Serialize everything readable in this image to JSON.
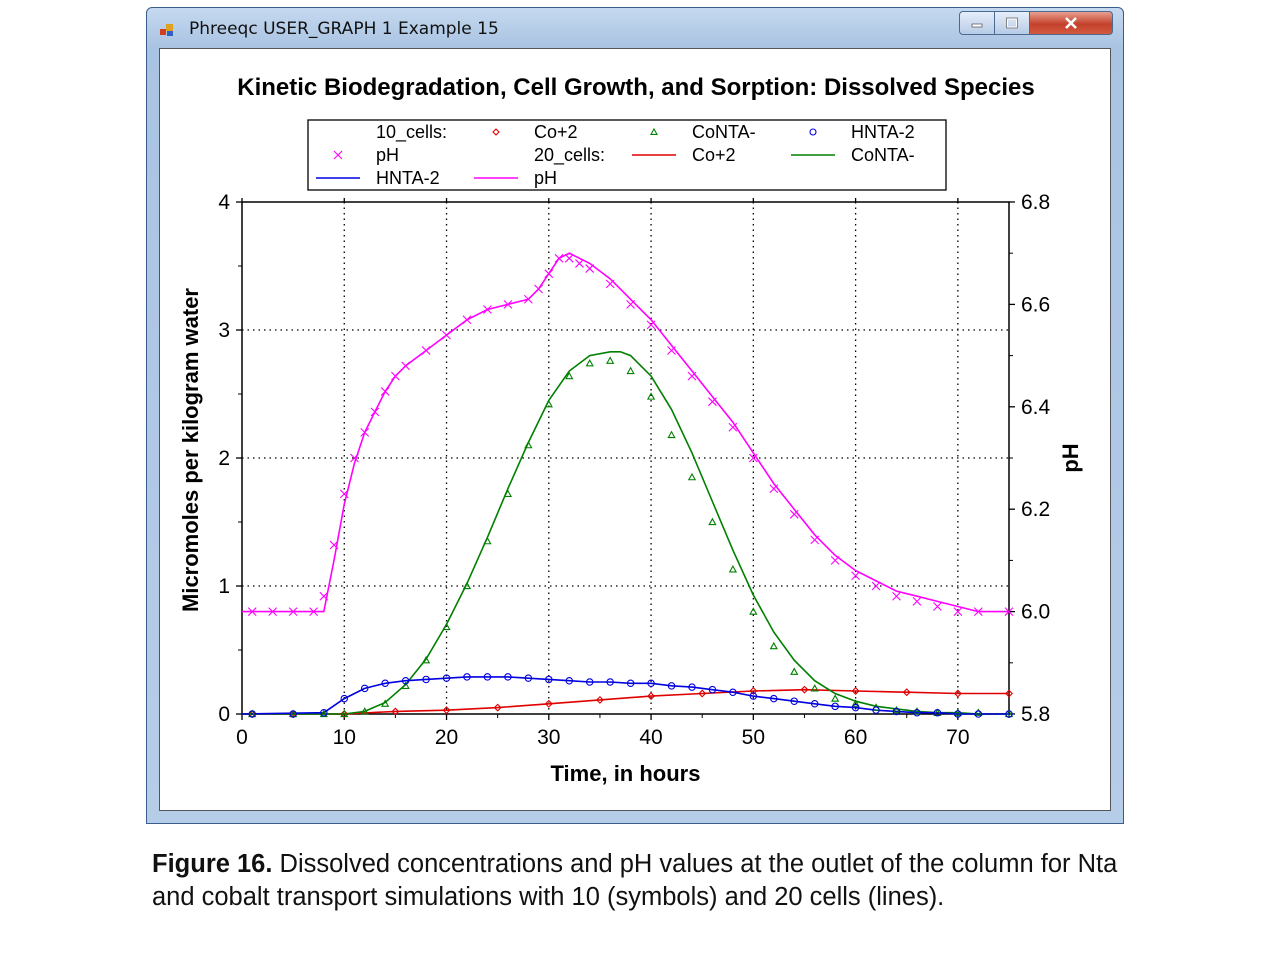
{
  "window": {
    "title": "Phreeqc USER_GRAPH 1 Example 15",
    "icon": "phreeqc-app-icon",
    "buttons": [
      "minimize-icon",
      "maximize-icon",
      "close-icon"
    ]
  },
  "caption": {
    "label": "Figure 16.",
    "text": " Dissolved concentrations and pH values at the outlet of the column for Nta and cobalt transport simulations with 10 (symbols) and 20 cells (lines)."
  },
  "colors": {
    "co2": "#e00000",
    "conta": "#008000",
    "hnta": "#0000e0",
    "ph": "#ff00ff"
  },
  "chart_data": {
    "type": "line",
    "title": "Kinetic Biodegradation, Cell Growth, and Sorption: Dissolved Species",
    "xlabel": "Time, in hours",
    "ylabel": "Micromoles per kilogram water",
    "y2label": "pH",
    "xlim": [
      0,
      75
    ],
    "ylim": [
      0,
      4
    ],
    "y2lim": [
      5.8,
      6.8
    ],
    "xticks": [
      0,
      10,
      20,
      30,
      40,
      50,
      60,
      70
    ],
    "yticks": [
      0,
      1,
      2,
      3,
      4
    ],
    "y2ticks": [
      "5.8",
      "6.0",
      "6.2",
      "6.4",
      "6.6",
      "6.8"
    ],
    "grid": true,
    "legend": {
      "placement": "top",
      "entries": [
        {
          "text": "10_cells:",
          "kind": "header"
        },
        {
          "text": "Co+2",
          "kind": "marker",
          "marker": "diamond",
          "color": "#e00000"
        },
        {
          "text": "CoNTA-",
          "kind": "marker",
          "marker": "triangle",
          "color": "#008000"
        },
        {
          "text": "HNTA-2",
          "kind": "marker",
          "marker": "circle",
          "color": "#0000e0"
        },
        {
          "text": "pH",
          "kind": "marker",
          "marker": "x",
          "color": "#ff00ff"
        },
        {
          "text": "20_cells:",
          "kind": "header"
        },
        {
          "text": "Co+2",
          "kind": "line",
          "color": "#e00000"
        },
        {
          "text": "CoNTA-",
          "kind": "line",
          "color": "#008000"
        },
        {
          "text": "HNTA-2",
          "kind": "line",
          "color": "#0000e0"
        },
        {
          "text": "pH",
          "kind": "line",
          "color": "#ff00ff"
        }
      ]
    },
    "series": [
      {
        "name": "Co+2",
        "group": "10_cells",
        "style": "markers",
        "marker": "diamond",
        "axis": "left",
        "color": "#e00000",
        "x": [
          1,
          5,
          10,
          15,
          20,
          25,
          30,
          35,
          40,
          45,
          50,
          55,
          60,
          65,
          70,
          75
        ],
        "y": [
          0,
          0,
          0,
          0.02,
          0.03,
          0.05,
          0.08,
          0.11,
          0.14,
          0.16,
          0.18,
          0.19,
          0.18,
          0.17,
          0.16,
          0.16
        ]
      },
      {
        "name": "CoNTA-",
        "group": "10_cells",
        "style": "markers",
        "marker": "triangle",
        "axis": "left",
        "color": "#008000",
        "x": [
          1,
          5,
          8,
          10,
          12,
          14,
          16,
          18,
          20,
          22,
          24,
          26,
          28,
          30,
          32,
          34,
          36,
          38,
          40,
          42,
          44,
          46,
          48,
          50,
          52,
          54,
          56,
          58,
          60,
          62,
          64,
          66,
          68,
          70,
          72,
          75
        ],
        "y": [
          0,
          0,
          0,
          0,
          0.02,
          0.08,
          0.22,
          0.42,
          0.68,
          1.0,
          1.35,
          1.72,
          2.1,
          2.42,
          2.64,
          2.74,
          2.76,
          2.68,
          2.48,
          2.18,
          1.85,
          1.5,
          1.13,
          0.8,
          0.53,
          0.33,
          0.2,
          0.12,
          0.08,
          0.05,
          0.03,
          0.02,
          0.01,
          0.01,
          0.01,
          0
        ]
      },
      {
        "name": "HNTA-2",
        "group": "10_cells",
        "style": "markers",
        "marker": "circle",
        "axis": "left",
        "color": "#0000e0",
        "x": [
          1,
          5,
          8,
          10,
          12,
          14,
          16,
          18,
          20,
          22,
          24,
          26,
          28,
          30,
          32,
          34,
          36,
          38,
          40,
          42,
          44,
          46,
          48,
          50,
          52,
          54,
          56,
          58,
          60,
          62,
          64,
          66,
          68,
          70,
          72,
          75
        ],
        "y": [
          0,
          0,
          0.01,
          0.12,
          0.2,
          0.24,
          0.26,
          0.27,
          0.28,
          0.29,
          0.29,
          0.29,
          0.28,
          0.27,
          0.26,
          0.25,
          0.25,
          0.24,
          0.24,
          0.22,
          0.21,
          0.19,
          0.17,
          0.14,
          0.12,
          0.1,
          0.08,
          0.06,
          0.05,
          0.03,
          0.02,
          0.01,
          0.01,
          0,
          0,
          0
        ]
      },
      {
        "name": "pH",
        "group": "10_cells",
        "style": "markers",
        "marker": "x",
        "axis": "right",
        "color": "#ff00ff",
        "x": [
          1,
          3,
          5,
          7,
          8,
          9,
          10,
          11,
          12,
          13,
          14,
          15,
          16,
          18,
          20,
          22,
          24,
          26,
          28,
          29,
          30,
          31,
          32,
          33,
          34,
          36,
          38,
          40,
          42,
          44,
          46,
          48,
          50,
          52,
          54,
          56,
          58,
          60,
          62,
          64,
          66,
          68,
          70,
          72,
          75
        ],
        "y": [
          6.0,
          6.0,
          6.0,
          6.0,
          6.03,
          6.13,
          6.23,
          6.3,
          6.35,
          6.39,
          6.43,
          6.46,
          6.48,
          6.51,
          6.54,
          6.57,
          6.59,
          6.6,
          6.61,
          6.63,
          6.66,
          6.69,
          6.69,
          6.68,
          6.67,
          6.64,
          6.6,
          6.56,
          6.51,
          6.46,
          6.41,
          6.36,
          6.3,
          6.24,
          6.19,
          6.14,
          6.1,
          6.07,
          6.05,
          6.03,
          6.02,
          6.01,
          6.0,
          6.0,
          6.0
        ]
      },
      {
        "name": "Co+2",
        "group": "20_cells",
        "style": "line",
        "axis": "left",
        "color": "#e00000",
        "x": [
          0,
          5,
          10,
          15,
          20,
          25,
          30,
          35,
          40,
          45,
          50,
          55,
          60,
          65,
          70,
          75
        ],
        "y": [
          0,
          0,
          0,
          0.02,
          0.03,
          0.05,
          0.08,
          0.11,
          0.14,
          0.16,
          0.18,
          0.19,
          0.18,
          0.17,
          0.16,
          0.16
        ]
      },
      {
        "name": "CoNTA-",
        "group": "20_cells",
        "style": "line",
        "axis": "left",
        "color": "#008000",
        "x": [
          0,
          8,
          10,
          12,
          14,
          16,
          18,
          20,
          22,
          24,
          26,
          28,
          30,
          32,
          34,
          36,
          37,
          38,
          40,
          42,
          44,
          46,
          48,
          50,
          52,
          54,
          56,
          58,
          60,
          62,
          64,
          66,
          68,
          70,
          72,
          75
        ],
        "y": [
          0,
          0,
          0,
          0.02,
          0.09,
          0.23,
          0.43,
          0.7,
          1.02,
          1.38,
          1.76,
          2.12,
          2.45,
          2.68,
          2.8,
          2.83,
          2.83,
          2.8,
          2.64,
          2.38,
          2.04,
          1.66,
          1.28,
          0.93,
          0.64,
          0.42,
          0.26,
          0.16,
          0.1,
          0.06,
          0.04,
          0.02,
          0.01,
          0.01,
          0,
          0
        ]
      },
      {
        "name": "HNTA-2",
        "group": "20_cells",
        "style": "line",
        "axis": "left",
        "color": "#0000e0",
        "x": [
          0,
          8,
          10,
          12,
          14,
          16,
          18,
          20,
          22,
          24,
          26,
          28,
          30,
          32,
          34,
          36,
          38,
          40,
          42,
          44,
          46,
          48,
          50,
          52,
          54,
          56,
          58,
          60,
          62,
          64,
          66,
          68,
          70,
          72,
          75
        ],
        "y": [
          0,
          0.01,
          0.12,
          0.2,
          0.24,
          0.26,
          0.27,
          0.28,
          0.29,
          0.29,
          0.29,
          0.28,
          0.27,
          0.26,
          0.25,
          0.25,
          0.24,
          0.24,
          0.22,
          0.21,
          0.19,
          0.17,
          0.14,
          0.12,
          0.1,
          0.08,
          0.06,
          0.05,
          0.03,
          0.02,
          0.01,
          0.01,
          0,
          0,
          0
        ]
      },
      {
        "name": "pH",
        "group": "20_cells",
        "style": "line",
        "axis": "right",
        "color": "#ff00ff",
        "x": [
          0,
          8,
          9,
          10,
          11,
          12,
          13,
          14,
          15,
          16,
          18,
          20,
          22,
          24,
          26,
          28,
          29,
          30,
          31,
          32,
          33,
          34,
          36,
          38,
          40,
          42,
          44,
          46,
          48,
          50,
          52,
          54,
          56,
          58,
          60,
          62,
          64,
          66,
          68,
          70,
          72,
          75
        ],
        "y": [
          6.0,
          6.0,
          6.1,
          6.21,
          6.29,
          6.35,
          6.39,
          6.43,
          6.46,
          6.48,
          6.51,
          6.54,
          6.57,
          6.59,
          6.6,
          6.61,
          6.63,
          6.66,
          6.69,
          6.7,
          6.69,
          6.68,
          6.65,
          6.61,
          6.57,
          6.52,
          6.47,
          6.42,
          6.37,
          6.31,
          6.25,
          6.2,
          6.15,
          6.11,
          6.08,
          6.06,
          6.04,
          6.03,
          6.02,
          6.01,
          6.0,
          6.0
        ]
      }
    ]
  }
}
